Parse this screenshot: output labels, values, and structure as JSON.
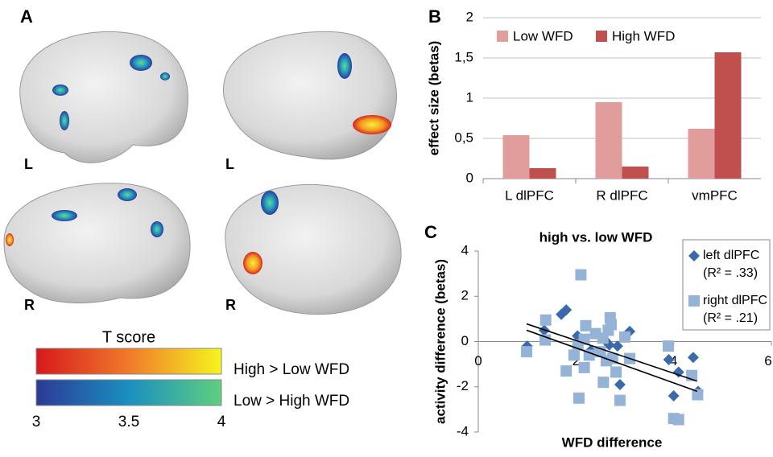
{
  "panel_a": {
    "label": "A",
    "hemisphere_labels": [
      "L",
      "L",
      "R",
      "R"
    ],
    "colorbar": {
      "title": "T score",
      "labels": [
        "High > Low WFD",
        "Low > High WFD"
      ],
      "range": [
        3,
        4
      ],
      "ticks": [
        3,
        3.5,
        4
      ],
      "colors": [
        [
          "#d7191c",
          "#f07a2a",
          "#f5f51e"
        ],
        [
          "#2b3a97",
          "#1b8fbf",
          "#5fcf7f"
        ]
      ]
    }
  },
  "chart_data": [
    {
      "type": "bar",
      "panel_label": "B",
      "ylabel": "effect size (betas)",
      "categories": [
        "L dlPFC",
        "R dlPFC",
        "vmPFC"
      ],
      "series": [
        {
          "name": "Low WFD",
          "color": "#e19d9c",
          "values": [
            0.54,
            0.95,
            0.62
          ]
        },
        {
          "name": "High WFD",
          "color": "#c0504d",
          "values": [
            0.13,
            0.15,
            1.57
          ]
        }
      ],
      "ylim": [
        0,
        2
      ],
      "yticks": [
        0,
        {
          "value": 0.5,
          "label": "0,5"
        },
        1,
        {
          "value": 1.5,
          "label": "1,5"
        },
        2
      ]
    },
    {
      "type": "scatter",
      "panel_label": "C",
      "title": "high vs. low WFD",
      "xlabel": "WFD difference",
      "ylabel": "activity difference (betas)",
      "xlim": [
        0,
        6
      ],
      "xticks": [
        0,
        2,
        4,
        6
      ],
      "ylim": [
        -4,
        4
      ],
      "yticks": [
        -4,
        -2,
        0,
        2,
        4
      ],
      "series": [
        {
          "name": "left dlPFC",
          "r2": "(R² = .33)",
          "color": "#3a6aaa",
          "marker": "diamond",
          "x": [
            1.0,
            1.35,
            1.7,
            1.8,
            2.03,
            2.3,
            2.6,
            2.68,
            2.85,
            3.1,
            2.9,
            3.9,
            4.1,
            4.0,
            4.4,
            4.5
          ],
          "values": [
            -0.2,
            0.5,
            1.2,
            1.4,
            0.25,
            -0.4,
            0.05,
            -0.15,
            -0.2,
            0.45,
            -1.9,
            -0.8,
            -1.35,
            -2.4,
            -0.7,
            -2.2
          ]
        },
        {
          "name": "right dlPFC",
          "r2": "(R² = .21)",
          "color": "#95b3d7",
          "marker": "square",
          "x": [
            0.99,
            1.37,
            1.38,
            2.1,
            1.96,
            2.04,
            2.06,
            2.17,
            1.8,
            2.2,
            2.27,
            2.4,
            2.55,
            2.66,
            2.7,
            2.72,
            2.75,
            2.56,
            2.82,
            2.9,
            3.1,
            2.62,
            3.89,
            4.0,
            4.1,
            4.37,
            4.49,
            2.17,
            2.5,
            3.0
          ],
          "values": [
            -0.45,
            0.07,
            0.95,
            2.95,
            -0.6,
            -0.15,
            -2.5,
            -1.15,
            -1.3,
            0.7,
            -0.6,
            0.35,
            0.15,
            0.5,
            1.05,
            0.75,
            -0.75,
            -1.8,
            -1.35,
            -2.6,
            -0.75,
            -0.85,
            -0.2,
            -3.4,
            -3.45,
            -1.5,
            -2.35,
            0.1,
            -0.45,
            0.2
          ]
        }
      ],
      "trend_lines": [
        {
          "x": [
            0.99,
            4.48
          ],
          "values": [
            0.78,
            -1.75
          ]
        },
        {
          "x": [
            0.99,
            4.48
          ],
          "values": [
            0.5,
            -2.2
          ]
        }
      ]
    }
  ]
}
